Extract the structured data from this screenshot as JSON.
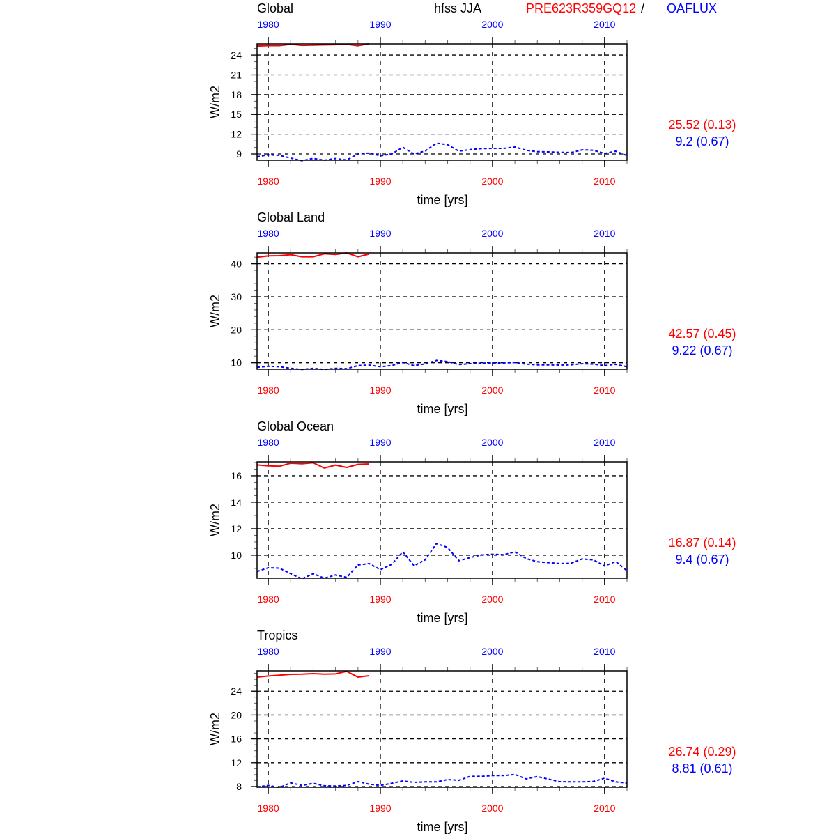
{
  "header": {
    "variable_season": "hfss JJA",
    "model_name": "PRE623R359GQ12",
    "separator": "/",
    "obs_name": "OAFLUX"
  },
  "colors": {
    "model": "#ff0000",
    "obs": "#0000ff",
    "axis": "#000000"
  },
  "chart_data": [
    {
      "type": "line",
      "title": "Global",
      "xlabel": "time [yrs]",
      "ylabel": "W/m2",
      "xlim": [
        1979,
        2012
      ],
      "ylim": [
        8.05,
        25.7
      ],
      "x_ticks": [
        1980,
        1990,
        2000,
        2010
      ],
      "y_ticks": [
        9,
        12,
        15,
        18,
        21,
        24
      ],
      "y_minor_step": 1,
      "grid": true,
      "stats": {
        "model": "25.52 (0.13)",
        "obs": "9.2 (0.67)"
      },
      "series": [
        {
          "name": "PRE623R359GQ12",
          "style": "solid",
          "x_start": 1979,
          "values": [
            25.37,
            25.44,
            25.44,
            25.65,
            25.48,
            25.51,
            25.55,
            25.58,
            25.65,
            25.41,
            25.73
          ]
        },
        {
          "name": "OAFLUX",
          "style": "dashed",
          "x_start": 1979,
          "values": [
            8.58,
            8.86,
            8.79,
            8.37,
            7.98,
            8.33,
            8.05,
            8.3,
            8.08,
            9.0,
            9.14,
            8.72,
            9.0,
            10.02,
            9.0,
            9.46,
            10.65,
            10.41,
            9.42,
            9.67,
            9.81,
            9.85,
            9.85,
            10.06,
            9.56,
            9.35,
            9.32,
            9.25,
            9.21,
            9.63,
            9.56,
            9.07,
            9.42,
            8.75
          ]
        }
      ]
    },
    {
      "type": "line",
      "title": "Global Land",
      "xlabel": "time [yrs]",
      "ylabel": "W/m2",
      "xlim": [
        1979,
        2012
      ],
      "ylim": [
        8.03,
        43.3
      ],
      "x_ticks": [
        1980,
        1990,
        2000,
        2010
      ],
      "y_ticks": [
        10,
        20,
        30,
        40
      ],
      "y_minor_step": 2,
      "grid": true,
      "stats": {
        "model": "42.57 (0.45)",
        "obs": "9.22 (0.67)"
      },
      "series": [
        {
          "name": "PRE623R359GQ12",
          "style": "solid",
          "x_start": 1979,
          "values": [
            41.97,
            42.39,
            42.46,
            42.75,
            42.11,
            42.11,
            43.03,
            42.82,
            43.31,
            42.11,
            42.96
          ]
        },
        {
          "name": "OAFLUX",
          "style": "dashed",
          "x_start": 1979,
          "values": [
            8.59,
            8.94,
            8.8,
            8.31,
            7.96,
            8.31,
            7.96,
            8.31,
            8.17,
            9.15,
            9.3,
            8.8,
            9.15,
            10.07,
            9.15,
            9.65,
            10.7,
            10.35,
            9.44,
            9.72,
            9.86,
            9.93,
            9.93,
            10.07,
            9.58,
            9.37,
            9.37,
            9.3,
            9.37,
            9.72,
            9.58,
            9.15,
            9.5,
            8.8
          ]
        }
      ]
    },
    {
      "type": "line",
      "title": "Global Ocean",
      "xlabel": "time [yrs]",
      "ylabel": "W/m2",
      "xlim": [
        1979,
        2012
      ],
      "ylim": [
        8.26,
        17.05
      ],
      "x_ticks": [
        1980,
        1990,
        2000,
        2010
      ],
      "y_ticks": [
        10,
        12,
        14,
        16
      ],
      "y_minor_step": 0.5,
      "grid": true,
      "stats": {
        "model": "16.87 (0.14)",
        "obs": "9.4 (0.67)"
      },
      "series": [
        {
          "name": "PRE623R359GQ12",
          "style": "solid",
          "x_start": 1979,
          "values": [
            16.82,
            16.75,
            16.72,
            16.95,
            16.91,
            16.98,
            16.58,
            16.81,
            16.63,
            16.86,
            16.89
          ]
        },
        {
          "name": "OAFLUX",
          "style": "dashed",
          "x_start": 1979,
          "values": [
            8.77,
            9.05,
            9.02,
            8.61,
            8.21,
            8.6,
            8.26,
            8.51,
            8.32,
            9.26,
            9.37,
            8.91,
            9.3,
            10.26,
            9.21,
            9.65,
            10.88,
            10.58,
            9.58,
            9.82,
            10.02,
            10.07,
            10.04,
            10.25,
            9.75,
            9.51,
            9.44,
            9.37,
            9.39,
            9.72,
            9.65,
            9.18,
            9.53,
            8.82
          ]
        }
      ]
    },
    {
      "type": "line",
      "title": "Tropics",
      "xlabel": "time [yrs]",
      "ylabel": "W/m2",
      "xlim": [
        1979,
        2012
      ],
      "ylim": [
        7.88,
        27.42
      ],
      "x_ticks": [
        1980,
        1990,
        2000,
        2010
      ],
      "y_ticks": [
        8,
        12,
        16,
        20,
        24
      ],
      "y_minor_step": 1,
      "grid": true,
      "stats": {
        "model": "26.74 (0.29)",
        "obs": "8.81 (0.61)"
      },
      "series": [
        {
          "name": "PRE623R359GQ12",
          "style": "solid",
          "x_start": 1979,
          "values": [
            26.37,
            26.56,
            26.68,
            26.83,
            26.87,
            26.95,
            26.87,
            26.91,
            27.34,
            26.37,
            26.6
          ]
        },
        {
          "name": "OAFLUX",
          "style": "dashed",
          "x_start": 1979,
          "values": [
            7.92,
            8.19,
            7.84,
            8.62,
            8.19,
            8.54,
            8.12,
            8.08,
            8.19,
            8.82,
            8.39,
            8.19,
            8.54,
            8.93,
            8.7,
            8.78,
            8.78,
            9.17,
            9.05,
            9.71,
            9.71,
            9.83,
            9.83,
            10.02,
            9.28,
            9.67,
            9.24,
            8.82,
            8.78,
            8.78,
            8.85,
            9.4,
            8.78,
            8.58
          ]
        }
      ]
    }
  ]
}
